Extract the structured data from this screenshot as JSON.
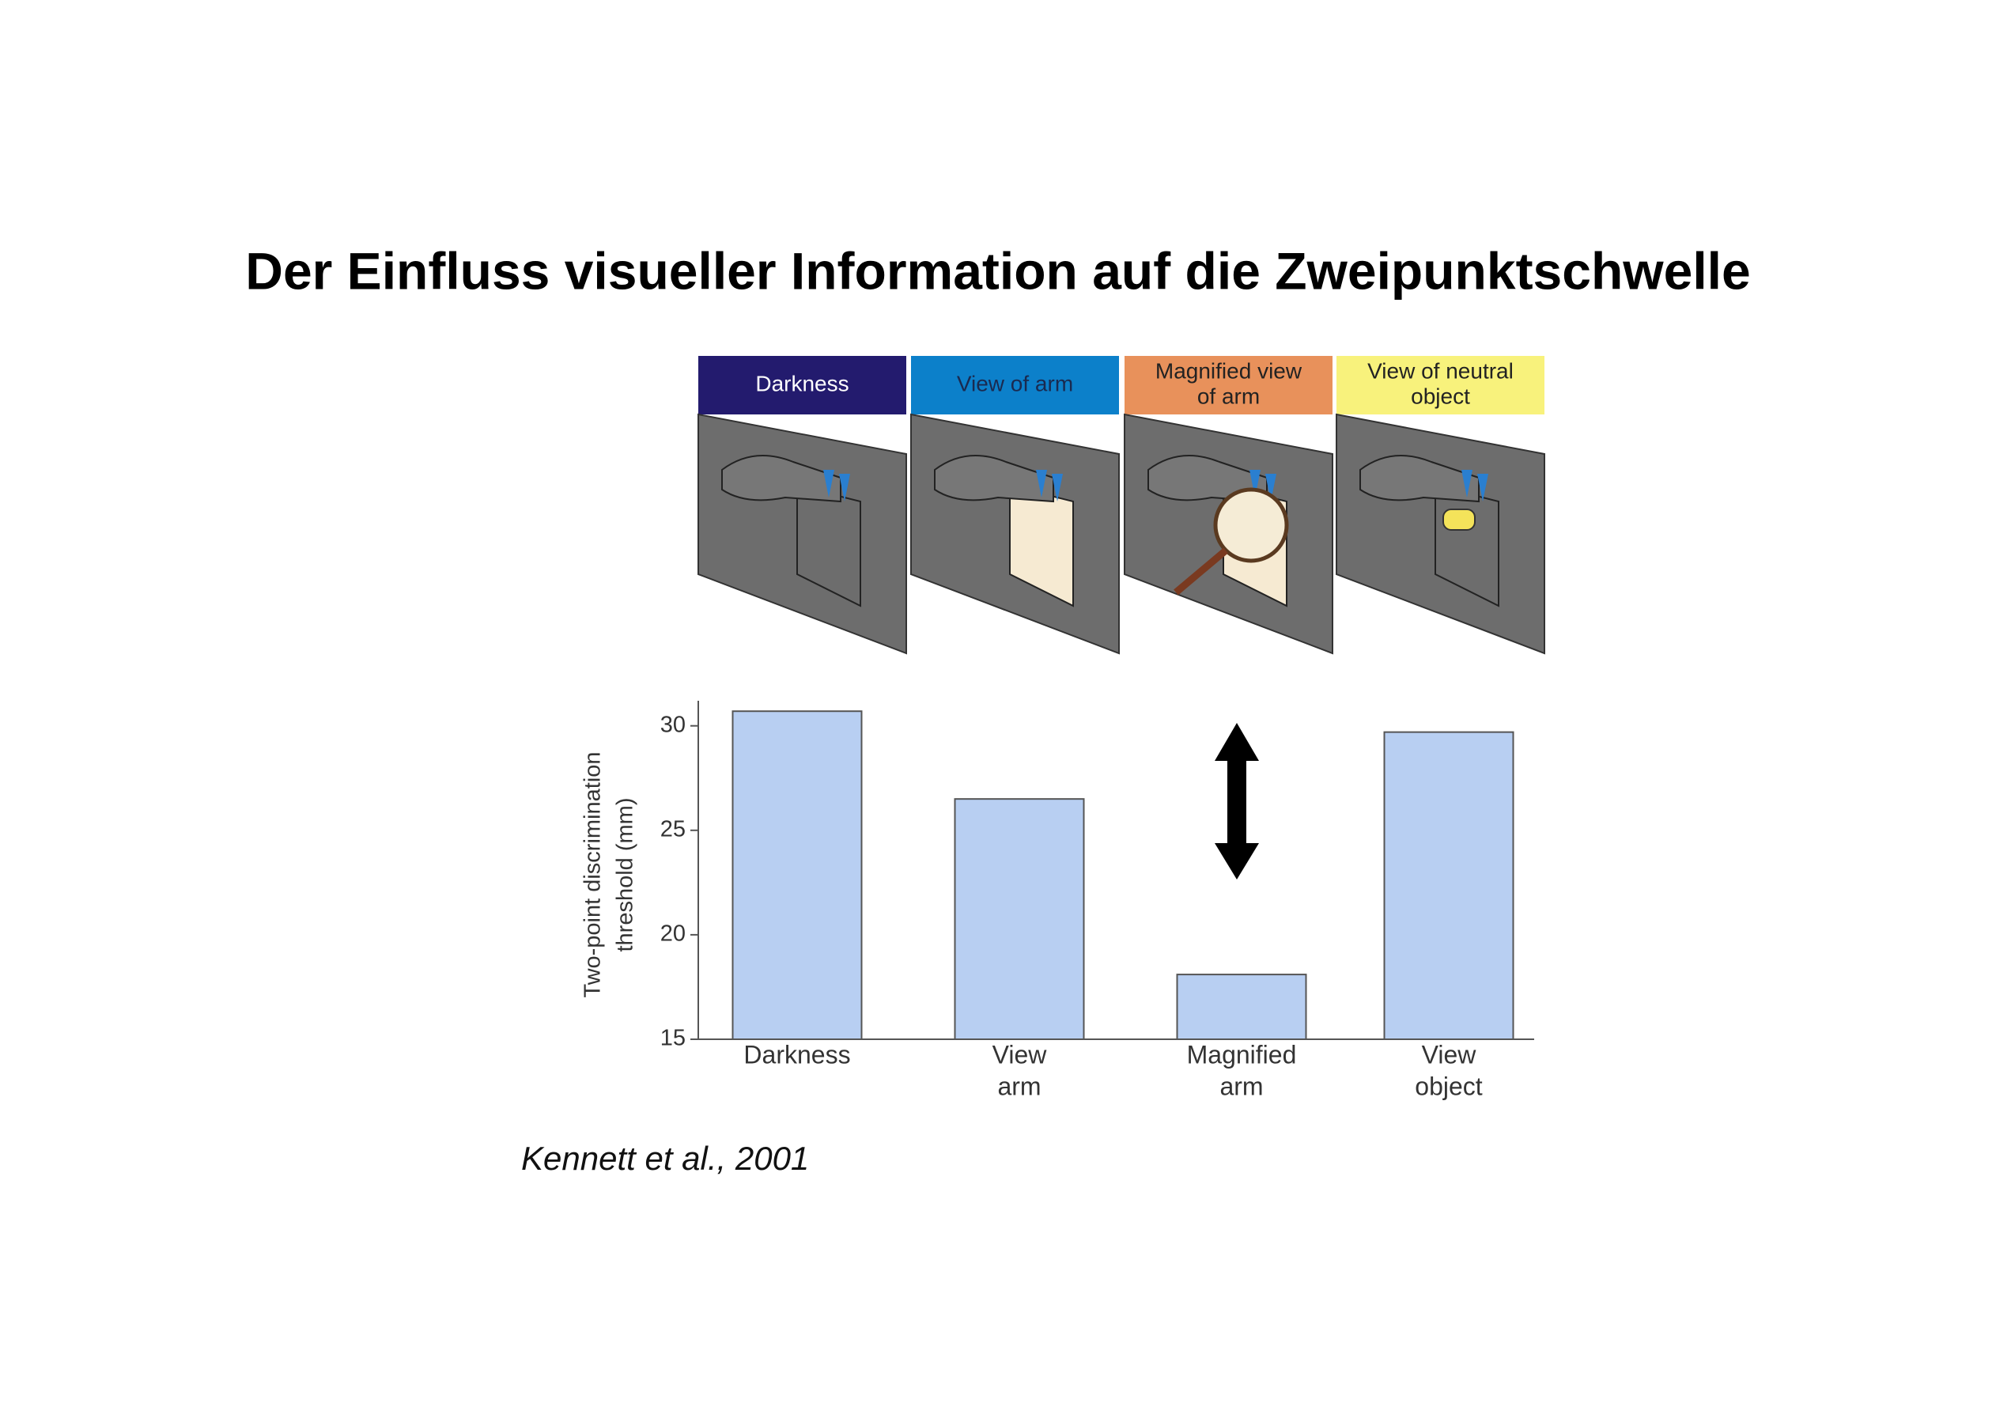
{
  "slide_title": "Der Einfluss visueller Information auf die Zweipunktschwelle",
  "panels": [
    [
      "Darkness"
    ],
    [
      "View of arm"
    ],
    [
      "Magnified view",
      "of arm"
    ],
    [
      "View of neutral",
      "object"
    ]
  ],
  "citation": "Kennett et al., 2001",
  "chart_data": {
    "type": "bar",
    "ylabel": [
      "Two-point discrimination",
      "threshold (mm)"
    ],
    "categories": [
      [
        "Darkness"
      ],
      [
        "View",
        "arm"
      ],
      [
        "Magnified",
        "arm"
      ],
      [
        "View",
        "object"
      ]
    ],
    "values": [
      30.7,
      26.5,
      18.1,
      29.7
    ],
    "color": "#b8cff2",
    "ylim": [
      15,
      31.2
    ],
    "yticks": [
      15,
      20,
      25,
      30
    ]
  }
}
